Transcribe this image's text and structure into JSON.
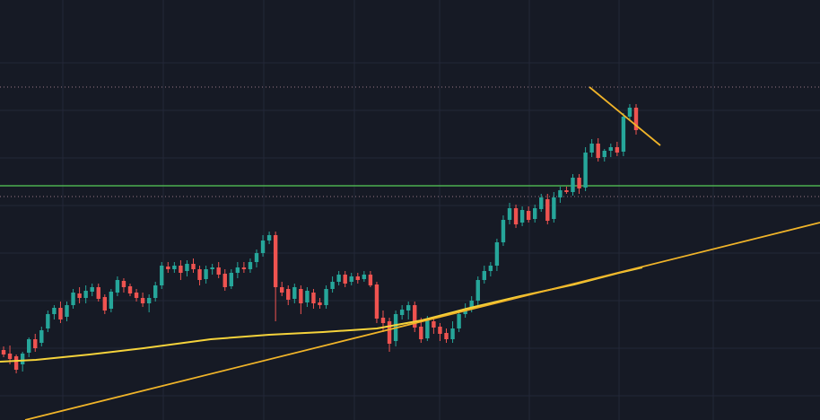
{
  "colors": {
    "background": "#161a25",
    "grid": "#232838",
    "bull": "#26a69a",
    "bear": "#ef5350",
    "moving_average": "#f5d33b",
    "trendline": "#f0b429",
    "support_line": "#4caf50",
    "dotted_level": "#9a7a86"
  },
  "chart_data": {
    "type": "candlestick",
    "title": "",
    "xlabel": "",
    "ylabel": "",
    "grid": true,
    "ylim": [
      0,
      468
    ],
    "x_count": 101,
    "candles": [
      [
        0,
        390,
        395,
        386,
        398
      ],
      [
        1,
        394,
        400,
        385,
        406
      ],
      [
        2,
        397,
        412,
        395,
        416
      ],
      [
        3,
        406,
        394,
        392,
        414
      ],
      [
        4,
        393,
        378,
        376,
        398
      ],
      [
        5,
        378,
        388,
        372,
        392
      ],
      [
        6,
        382,
        368,
        364,
        386
      ],
      [
        7,
        366,
        350,
        346,
        370
      ],
      [
        8,
        350,
        343,
        340,
        356
      ],
      [
        9,
        343,
        356,
        336,
        360
      ],
      [
        10,
        353,
        340,
        336,
        358
      ],
      [
        11,
        340,
        326,
        322,
        344
      ],
      [
        12,
        327,
        332,
        320,
        338
      ],
      [
        13,
        332,
        324,
        318,
        338
      ],
      [
        14,
        325,
        320,
        316,
        330
      ],
      [
        15,
        320,
        333,
        316,
        336
      ],
      [
        16,
        331,
        346,
        328,
        350
      ],
      [
        17,
        344,
        325,
        322,
        348
      ],
      [
        18,
        326,
        312,
        308,
        330
      ],
      [
        19,
        313,
        320,
        310,
        326
      ],
      [
        20,
        319,
        327,
        316,
        330
      ],
      [
        21,
        326,
        332,
        322,
        336
      ],
      [
        22,
        332,
        338,
        326,
        342
      ],
      [
        23,
        338,
        332,
        328,
        348
      ],
      [
        24,
        332,
        318,
        314,
        336
      ],
      [
        25,
        318,
        296,
        292,
        322
      ],
      [
        26,
        297,
        300,
        292,
        304
      ],
      [
        27,
        300,
        296,
        292,
        304
      ],
      [
        28,
        296,
        304,
        290,
        312
      ],
      [
        29,
        302,
        294,
        290,
        308
      ],
      [
        30,
        294,
        300,
        288,
        304
      ],
      [
        31,
        300,
        312,
        296,
        318
      ],
      [
        32,
        311,
        300,
        296,
        316
      ],
      [
        33,
        300,
        298,
        294,
        306
      ],
      [
        34,
        298,
        306,
        292,
        310
      ],
      [
        35,
        305,
        320,
        300,
        324
      ],
      [
        36,
        319,
        304,
        300,
        322
      ],
      [
        37,
        304,
        298,
        292,
        310
      ],
      [
        38,
        298,
        300,
        292,
        304
      ],
      [
        39,
        300,
        292,
        288,
        304
      ],
      [
        40,
        292,
        282,
        278,
        298
      ],
      [
        41,
        282,
        268,
        262,
        286
      ],
      [
        42,
        268,
        262,
        258,
        272
      ],
      [
        43,
        262,
        320,
        258,
        358
      ],
      [
        44,
        320,
        326,
        314,
        330
      ],
      [
        45,
        322,
        334,
        318,
        340
      ],
      [
        46,
        333,
        320,
        316,
        338
      ],
      [
        47,
        322,
        338,
        318,
        350
      ],
      [
        48,
        337,
        324,
        320,
        342
      ],
      [
        49,
        326,
        338,
        322,
        344
      ],
      [
        50,
        337,
        340,
        332,
        344
      ],
      [
        51,
        340,
        322,
        318,
        344
      ],
      [
        52,
        322,
        314,
        308,
        326
      ],
      [
        53,
        314,
        306,
        302,
        318
      ],
      [
        54,
        306,
        316,
        302,
        320
      ],
      [
        55,
        314,
        308,
        304,
        318
      ],
      [
        56,
        308,
        312,
        304,
        316
      ],
      [
        57,
        311,
        306,
        302,
        314
      ],
      [
        58,
        306,
        318,
        302,
        320
      ],
      [
        59,
        317,
        355,
        314,
        360
      ],
      [
        60,
        354,
        360,
        346,
        370
      ],
      [
        61,
        358,
        383,
        354,
        392
      ],
      [
        62,
        380,
        350,
        346,
        386
      ],
      [
        63,
        351,
        345,
        340,
        356
      ],
      [
        64,
        346,
        340,
        336,
        356
      ],
      [
        65,
        340,
        365,
        336,
        370
      ],
      [
        66,
        364,
        378,
        354,
        382
      ],
      [
        67,
        377,
        357,
        352,
        380
      ],
      [
        68,
        358,
        365,
        354,
        372
      ],
      [
        69,
        364,
        372,
        360,
        380
      ],
      [
        70,
        371,
        378,
        366,
        382
      ],
      [
        71,
        378,
        366,
        358,
        382
      ],
      [
        72,
        366,
        350,
        346,
        370
      ],
      [
        73,
        350,
        344,
        338,
        354
      ],
      [
        74,
        344,
        335,
        330,
        348
      ],
      [
        75,
        335,
        312,
        308,
        340
      ],
      [
        76,
        312,
        302,
        296,
        316
      ],
      [
        77,
        302,
        296,
        292,
        308
      ],
      [
        78,
        296,
        270,
        266,
        302
      ],
      [
        79,
        270,
        245,
        240,
        274
      ],
      [
        80,
        245,
        232,
        226,
        250
      ],
      [
        81,
        232,
        250,
        228,
        254
      ],
      [
        82,
        248,
        234,
        230,
        252
      ],
      [
        83,
        235,
        245,
        230,
        248
      ],
      [
        84,
        244,
        232,
        228,
        248
      ],
      [
        85,
        233,
        220,
        216,
        236
      ],
      [
        86,
        222,
        246,
        216,
        250
      ],
      [
        87,
        244,
        220,
        214,
        248
      ],
      [
        88,
        220,
        212,
        208,
        226
      ],
      [
        89,
        212,
        214,
        208,
        216
      ],
      [
        90,
        214,
        198,
        194,
        218
      ],
      [
        91,
        198,
        210,
        194,
        216
      ],
      [
        92,
        209,
        170,
        164,
        213
      ],
      [
        93,
        170,
        160,
        155,
        175
      ],
      [
        94,
        160,
        176,
        154,
        180
      ],
      [
        95,
        175,
        168,
        166,
        180
      ],
      [
        96,
        168,
        164,
        160,
        175
      ],
      [
        97,
        164,
        170,
        158,
        174
      ],
      [
        98,
        169,
        130,
        126,
        174
      ],
      [
        99,
        130,
        120,
        116,
        135
      ],
      [
        100,
        120,
        145,
        116,
        150
      ]
    ]
  }
}
